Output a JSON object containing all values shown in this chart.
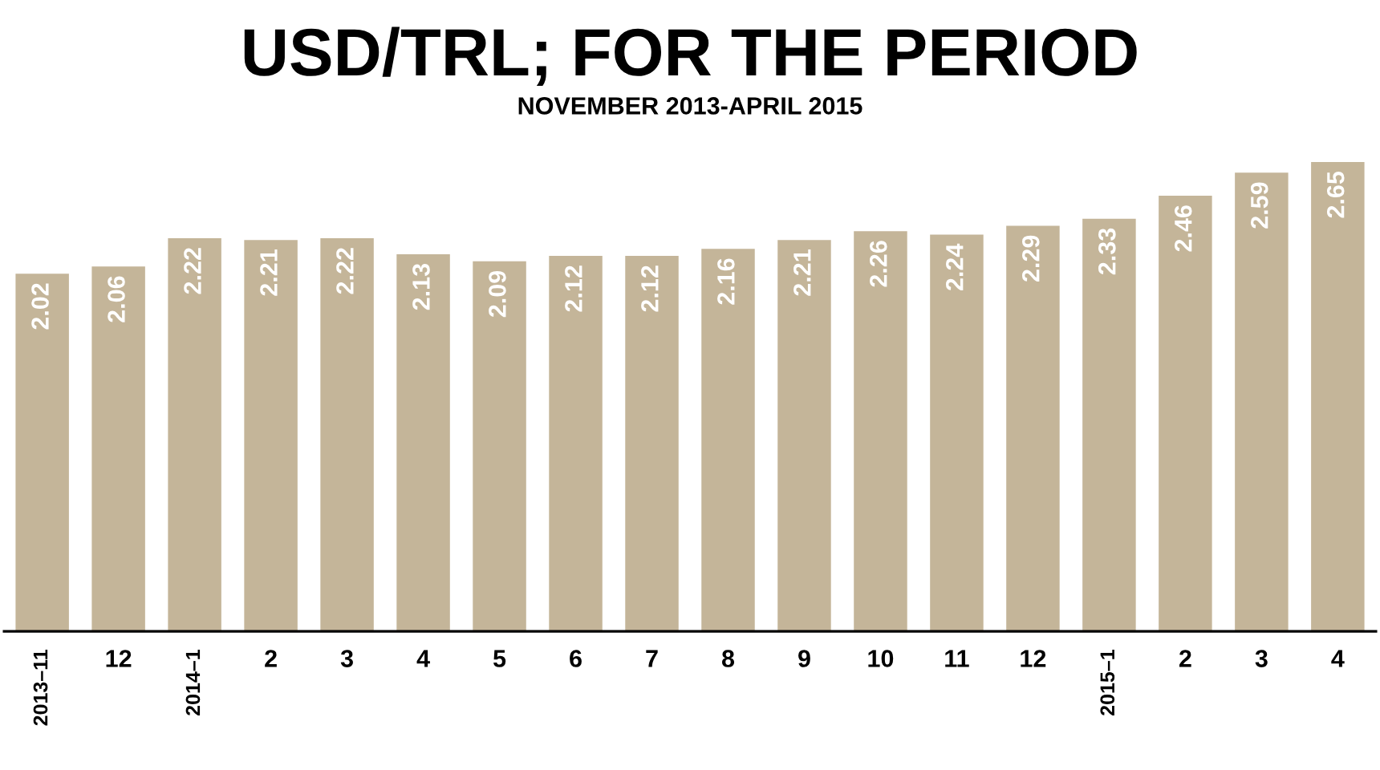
{
  "chart_data": {
    "type": "bar",
    "title": "USD/TRL; FOR THE PERIOD",
    "subtitle": "NOVEMBER 2013-APRIL 2015",
    "categories": [
      "2013–11",
      "12",
      "2014–1",
      "2",
      "3",
      "4",
      "5",
      "6",
      "7",
      "8",
      "9",
      "10",
      "11",
      "12",
      "2015–1",
      "2",
      "3",
      "4"
    ],
    "values": [
      2.02,
      2.06,
      2.22,
      2.21,
      2.22,
      2.13,
      2.09,
      2.12,
      2.12,
      2.16,
      2.21,
      2.26,
      2.24,
      2.29,
      2.33,
      2.46,
      2.59,
      2.65
    ],
    "color": "#c4b599",
    "data_labels": true,
    "grid": false,
    "legend": false
  }
}
